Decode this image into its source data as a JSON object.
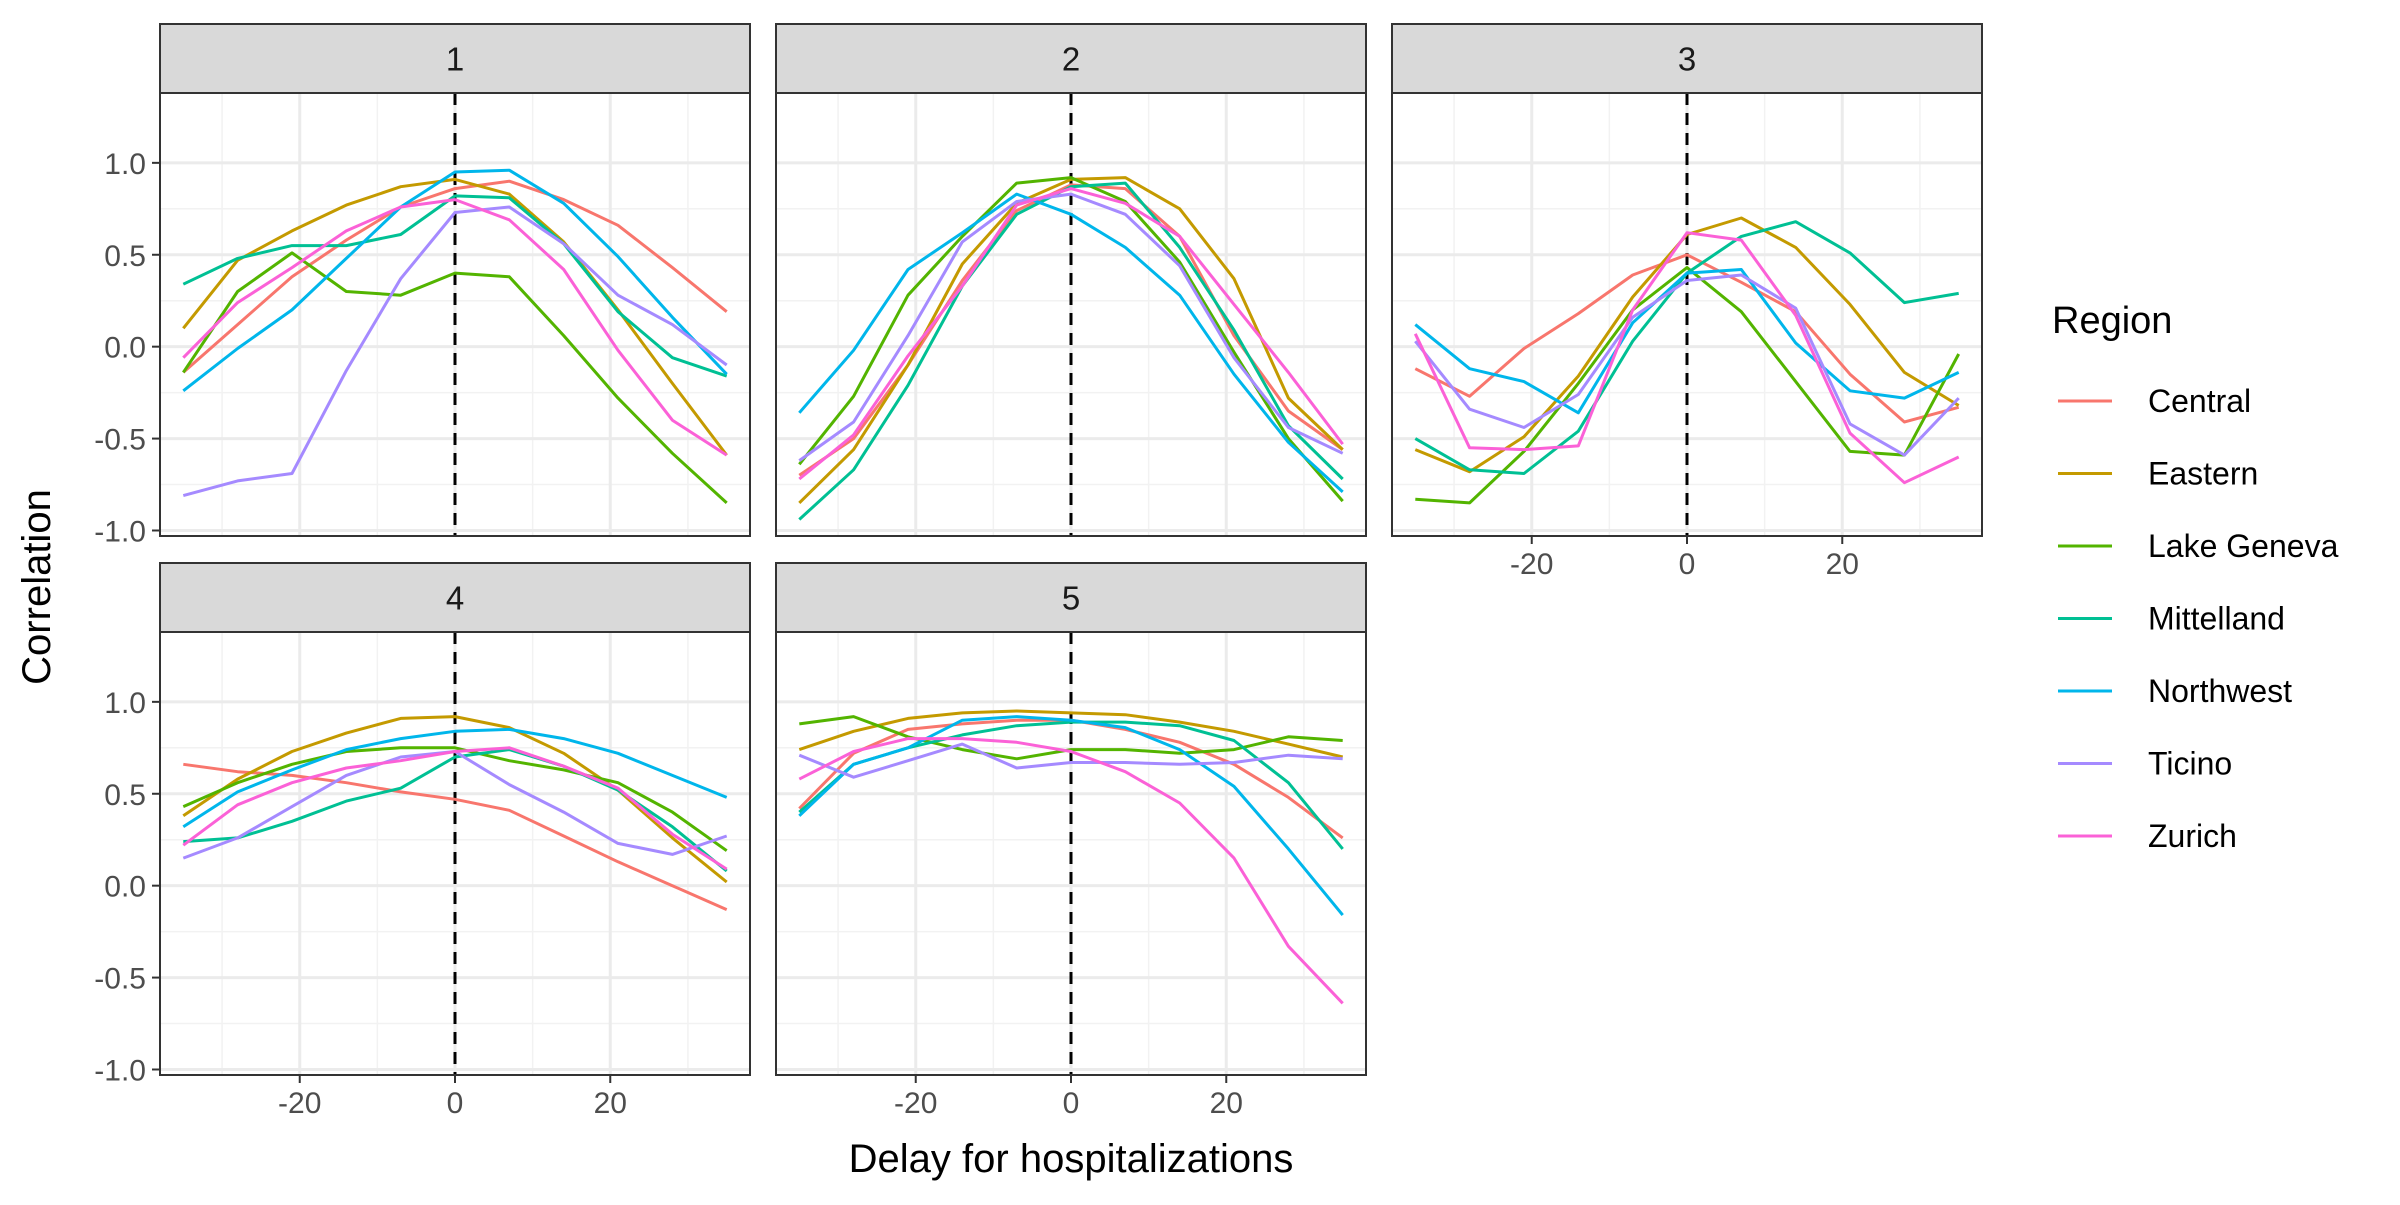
{
  "chart_data": {
    "type": "line",
    "xlabel": "Delay for hospitalizations",
    "ylabel": "Correlation",
    "xlim": [
      -38,
      38
    ],
    "ylim": [
      -1.03,
      1.38
    ],
    "x_ticks": [
      -20,
      0,
      20
    ],
    "y_ticks": [
      -1.0,
      -0.5,
      0.0,
      0.5,
      1.0
    ],
    "y_tick_labels": [
      "-1.0",
      "-0.5",
      "0.0",
      "0.5",
      "1.0"
    ],
    "reference_line": {
      "x": 0,
      "style": "dashed"
    },
    "grid": true,
    "legend": {
      "title": "Region",
      "placement": "right",
      "entries": [
        "Central",
        "Eastern",
        "Lake Geneva",
        "Mittelland",
        "Northwest",
        "Ticino",
        "Zurich"
      ]
    },
    "colors": {
      "Central": "#F8766D",
      "Eastern": "#C49A00",
      "Lake Geneva": "#53B400",
      "Mittelland": "#00C094",
      "Northwest": "#00B6EB",
      "Ticino": "#A58AFF",
      "Zurich": "#FB61D7"
    },
    "x": [
      -35,
      -28,
      -21,
      -14,
      -7,
      0,
      7,
      14,
      21,
      28,
      35
    ],
    "panels": [
      {
        "label": "1",
        "series": [
          {
            "name": "Central",
            "values": [
              -0.14,
              0.12,
              0.38,
              0.58,
              0.76,
              0.86,
              0.9,
              0.8,
              0.66,
              0.43,
              0.19
            ]
          },
          {
            "name": "Eastern",
            "values": [
              0.1,
              0.47,
              0.63,
              0.77,
              0.87,
              0.91,
              0.83,
              0.57,
              0.2,
              -0.2,
              -0.59
            ]
          },
          {
            "name": "Lake Geneva",
            "values": [
              -0.14,
              0.3,
              0.51,
              0.3,
              0.28,
              0.4,
              0.38,
              0.06,
              -0.28,
              -0.58,
              -0.85
            ]
          },
          {
            "name": "Mittelland",
            "values": [
              0.34,
              0.48,
              0.55,
              0.55,
              0.61,
              0.82,
              0.81,
              0.56,
              0.19,
              -0.06,
              -0.16
            ]
          },
          {
            "name": "Northwest",
            "values": [
              -0.24,
              -0.01,
              0.2,
              0.48,
              0.76,
              0.95,
              0.96,
              0.78,
              0.49,
              0.16,
              -0.15
            ]
          },
          {
            "name": "Ticino",
            "values": [
              -0.81,
              -0.73,
              -0.69,
              -0.13,
              0.37,
              0.73,
              0.76,
              0.56,
              0.28,
              0.12,
              -0.1
            ]
          },
          {
            "name": "Zurich",
            "values": [
              -0.06,
              0.24,
              0.43,
              0.63,
              0.76,
              0.8,
              0.69,
              0.42,
              -0.02,
              -0.4,
              -0.59
            ]
          }
        ]
      },
      {
        "label": "2",
        "series": [
          {
            "name": "Central",
            "values": [
              -0.7,
              -0.5,
              -0.1,
              0.36,
              0.74,
              0.88,
              0.86,
              0.6,
              0.06,
              -0.35,
              -0.56
            ]
          },
          {
            "name": "Eastern",
            "values": [
              -0.85,
              -0.56,
              -0.1,
              0.45,
              0.78,
              0.91,
              0.92,
              0.75,
              0.37,
              -0.28,
              -0.56
            ]
          },
          {
            "name": "Lake Geneva",
            "values": [
              -0.64,
              -0.27,
              0.28,
              0.6,
              0.89,
              0.92,
              0.79,
              0.46,
              -0.03,
              -0.5,
              -0.84
            ]
          },
          {
            "name": "Mittelland",
            "values": [
              -0.94,
              -0.67,
              -0.21,
              0.33,
              0.72,
              0.87,
              0.89,
              0.54,
              0.09,
              -0.43,
              -0.72
            ]
          },
          {
            "name": "Northwest",
            "values": [
              -0.36,
              -0.02,
              0.42,
              0.62,
              0.83,
              0.72,
              0.54,
              0.28,
              -0.15,
              -0.52,
              -0.79
            ]
          },
          {
            "name": "Ticino",
            "values": [
              -0.62,
              -0.41,
              0.06,
              0.57,
              0.79,
              0.83,
              0.72,
              0.44,
              -0.06,
              -0.44,
              -0.58
            ]
          },
          {
            "name": "Zurich",
            "values": [
              -0.72,
              -0.48,
              -0.05,
              0.33,
              0.77,
              0.86,
              0.78,
              0.6,
              0.23,
              -0.14,
              -0.53
            ]
          }
        ]
      },
      {
        "label": "3",
        "series": [
          {
            "name": "Central",
            "values": [
              -0.12,
              -0.27,
              -0.01,
              0.18,
              0.39,
              0.5,
              0.35,
              0.19,
              -0.15,
              -0.41,
              -0.33
            ]
          },
          {
            "name": "Eastern",
            "values": [
              -0.56,
              -0.68,
              -0.49,
              -0.16,
              0.27,
              0.61,
              0.7,
              0.54,
              0.23,
              -0.14,
              -0.32
            ]
          },
          {
            "name": "Lake Geneva",
            "values": [
              -0.83,
              -0.85,
              -0.57,
              -0.2,
              0.2,
              0.43,
              0.19,
              -0.19,
              -0.57,
              -0.59,
              -0.04
            ]
          },
          {
            "name": "Mittelland",
            "values": [
              -0.5,
              -0.67,
              -0.69,
              -0.46,
              0.03,
              0.4,
              0.6,
              0.68,
              0.51,
              0.24,
              0.29
            ]
          },
          {
            "name": "Northwest",
            "values": [
              0.12,
              -0.12,
              -0.19,
              -0.36,
              0.13,
              0.4,
              0.42,
              0.02,
              -0.24,
              -0.28,
              -0.14
            ]
          },
          {
            "name": "Ticino",
            "values": [
              0.03,
              -0.34,
              -0.44,
              -0.26,
              0.16,
              0.36,
              0.39,
              0.21,
              -0.42,
              -0.59,
              -0.28
            ]
          },
          {
            "name": "Zurich",
            "values": [
              0.07,
              -0.55,
              -0.56,
              -0.54,
              0.2,
              0.62,
              0.58,
              0.17,
              -0.47,
              -0.74,
              -0.6
            ]
          }
        ]
      },
      {
        "label": "4",
        "series": [
          {
            "name": "Central",
            "values": [
              0.66,
              0.62,
              0.6,
              0.56,
              0.51,
              0.47,
              0.41,
              0.27,
              0.13,
              0.0,
              -0.13
            ]
          },
          {
            "name": "Eastern",
            "values": [
              0.38,
              0.58,
              0.73,
              0.83,
              0.91,
              0.92,
              0.86,
              0.72,
              0.52,
              0.26,
              0.02
            ]
          },
          {
            "name": "Lake Geneva",
            "values": [
              0.43,
              0.56,
              0.66,
              0.73,
              0.75,
              0.75,
              0.68,
              0.63,
              0.56,
              0.4,
              0.19
            ]
          },
          {
            "name": "Mittelland",
            "values": [
              0.24,
              0.26,
              0.35,
              0.46,
              0.53,
              0.7,
              0.74,
              0.65,
              0.52,
              0.32,
              0.08
            ]
          },
          {
            "name": "Northwest",
            "values": [
              0.32,
              0.51,
              0.63,
              0.74,
              0.8,
              0.84,
              0.85,
              0.8,
              0.72,
              0.6,
              0.48
            ]
          },
          {
            "name": "Ticino",
            "values": [
              0.15,
              0.26,
              0.43,
              0.6,
              0.7,
              0.73,
              0.55,
              0.4,
              0.23,
              0.17,
              0.27
            ]
          },
          {
            "name": "Zurich",
            "values": [
              0.22,
              0.44,
              0.56,
              0.64,
              0.68,
              0.73,
              0.75,
              0.65,
              0.53,
              0.28,
              0.09
            ]
          }
        ]
      },
      {
        "label": "5",
        "series": [
          {
            "name": "Central",
            "values": [
              0.42,
              0.72,
              0.85,
              0.88,
              0.9,
              0.9,
              0.85,
              0.78,
              0.66,
              0.48,
              0.26
            ]
          },
          {
            "name": "Eastern",
            "values": [
              0.74,
              0.84,
              0.91,
              0.94,
              0.95,
              0.94,
              0.93,
              0.89,
              0.84,
              0.77,
              0.7
            ]
          },
          {
            "name": "Lake Geneva",
            "values": [
              0.88,
              0.92,
              0.81,
              0.74,
              0.69,
              0.74,
              0.74,
              0.72,
              0.74,
              0.81,
              0.79
            ]
          },
          {
            "name": "Mittelland",
            "values": [
              0.4,
              0.66,
              0.75,
              0.82,
              0.87,
              0.89,
              0.89,
              0.87,
              0.79,
              0.56,
              0.2
            ]
          },
          {
            "name": "Northwest",
            "values": [
              0.38,
              0.66,
              0.75,
              0.9,
              0.92,
              0.9,
              0.86,
              0.74,
              0.54,
              0.2,
              -0.16
            ]
          },
          {
            "name": "Ticino",
            "values": [
              0.71,
              0.59,
              0.68,
              0.77,
              0.64,
              0.67,
              0.67,
              0.66,
              0.67,
              0.71,
              0.69
            ]
          },
          {
            "name": "Zurich",
            "values": [
              0.58,
              0.73,
              0.8,
              0.8,
              0.78,
              0.73,
              0.62,
              0.45,
              0.15,
              -0.33,
              -0.64
            ]
          }
        ]
      }
    ]
  }
}
